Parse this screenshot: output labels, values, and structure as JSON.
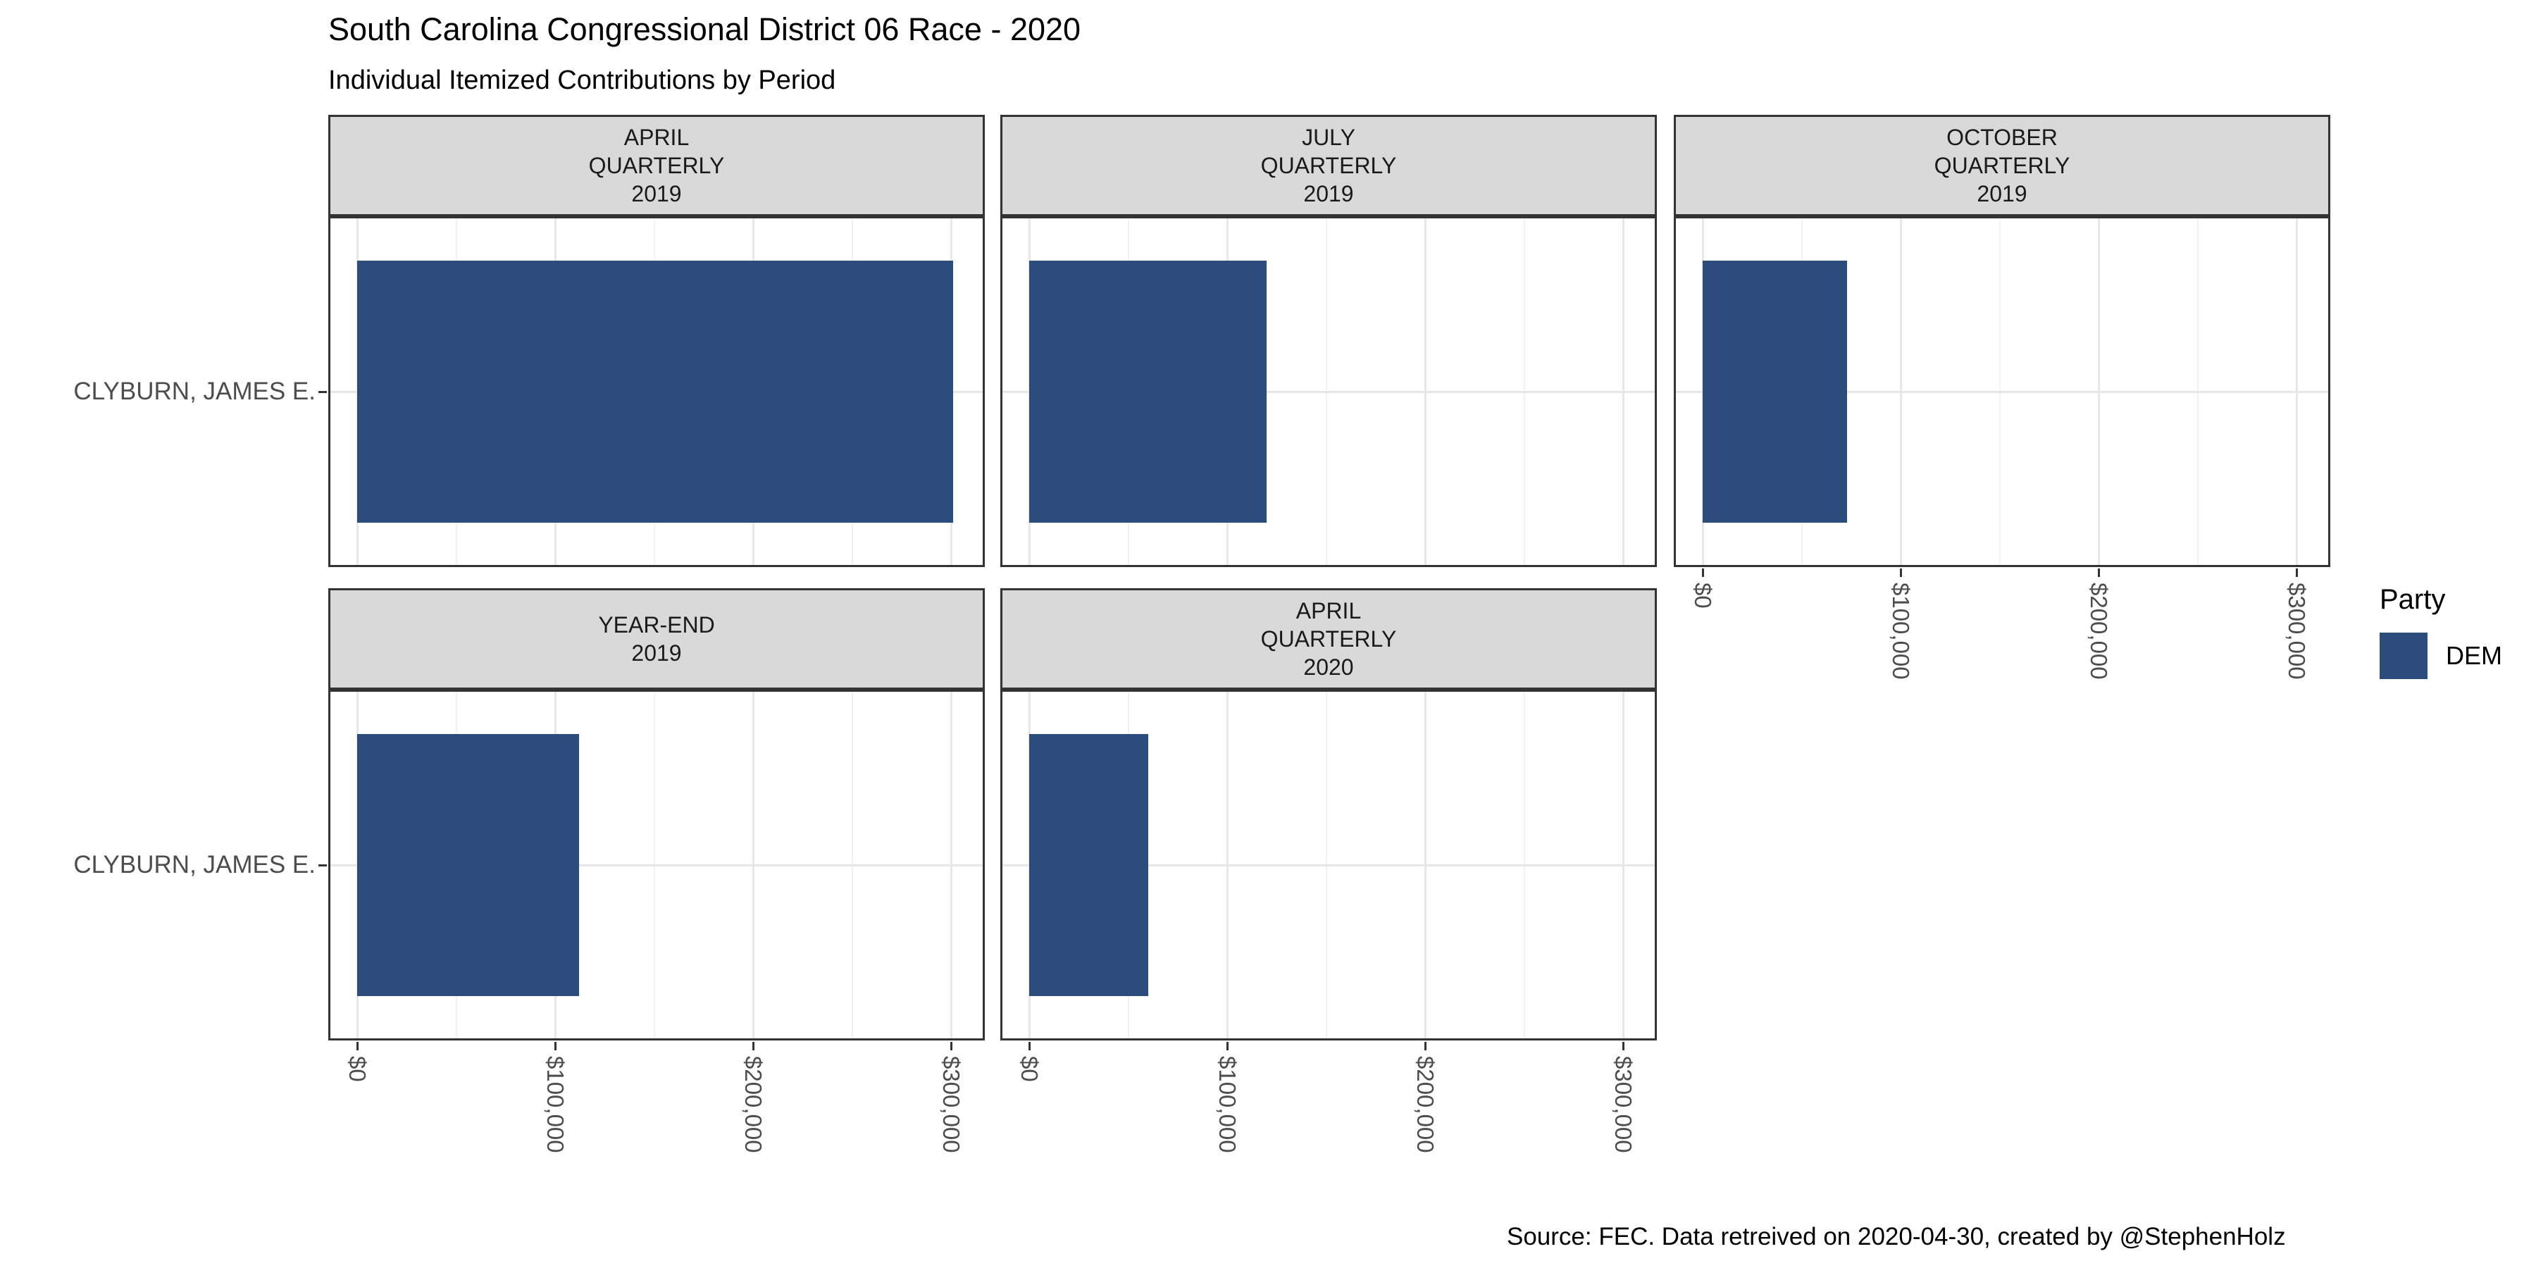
{
  "title": "South Carolina Congressional District 06 Race - 2020",
  "subtitle": "Individual Itemized Contributions by Period",
  "caption": "Source: FEC. Data retreived on 2020-04-30, created by @StephenHolz",
  "legend": {
    "title": "Party",
    "items": [
      {
        "label": "DEM",
        "color": "#2B4C7D"
      }
    ]
  },
  "colors": {
    "bar": "#2B4C7D",
    "strip_bg": "#D9D9D9",
    "panel_border": "#333333",
    "grid_major": "#E7E7E7",
    "grid_minor": "#F2F2F2",
    "axis_text": "#4D4D4D"
  },
  "chart_data": {
    "type": "bar",
    "orientation": "horizontal",
    "title": "South Carolina Congressional District 06 Race - 2020",
    "subtitle": "Individual Itemized Contributions by Period",
    "caption": "Source: FEC. Data retreived on 2020-04-30, created by @StephenHolz",
    "y_category": "CLYBURN, JAMES E.",
    "series_name": "DEM",
    "bar_color": "#2B4C7D",
    "legend_position": "right",
    "grid": true,
    "x_axis": {
      "format": "USD",
      "tick_labels": [
        "$0",
        "$100,000",
        "$200,000",
        "$300,000"
      ],
      "tick_values": [
        0,
        100000,
        200000,
        300000
      ],
      "minor_tick_values": [
        50000,
        150000,
        250000
      ],
      "range": [
        -15000,
        318000
      ]
    },
    "facets": [
      {
        "label": "APRIL QUARTERLY 2019",
        "label_lines": [
          "APRIL",
          "QUARTERLY",
          "2019"
        ],
        "category": "CLYBURN, JAMES E.",
        "party": "DEM",
        "value": 301000
      },
      {
        "label": "JULY QUARTERLY 2019",
        "label_lines": [
          "JULY",
          "QUARTERLY",
          "2019"
        ],
        "category": "CLYBURN, JAMES E.",
        "party": "DEM",
        "value": 120000
      },
      {
        "label": "OCTOBER QUARTERLY 2019",
        "label_lines": [
          "OCTOBER",
          "QUARTERLY",
          "2019"
        ],
        "category": "CLYBURN, JAMES E.",
        "party": "DEM",
        "value": 73000
      },
      {
        "label": "YEAR-END 2019",
        "label_lines": [
          "YEAR-END",
          "2019"
        ],
        "category": "CLYBURN, JAMES E.",
        "party": "DEM",
        "value": 112000
      },
      {
        "label": "APRIL QUARTERLY 2020",
        "label_lines": [
          "APRIL",
          "QUARTERLY",
          "2020"
        ],
        "category": "CLYBURN, JAMES E.",
        "party": "DEM",
        "value": 60000
      }
    ]
  }
}
